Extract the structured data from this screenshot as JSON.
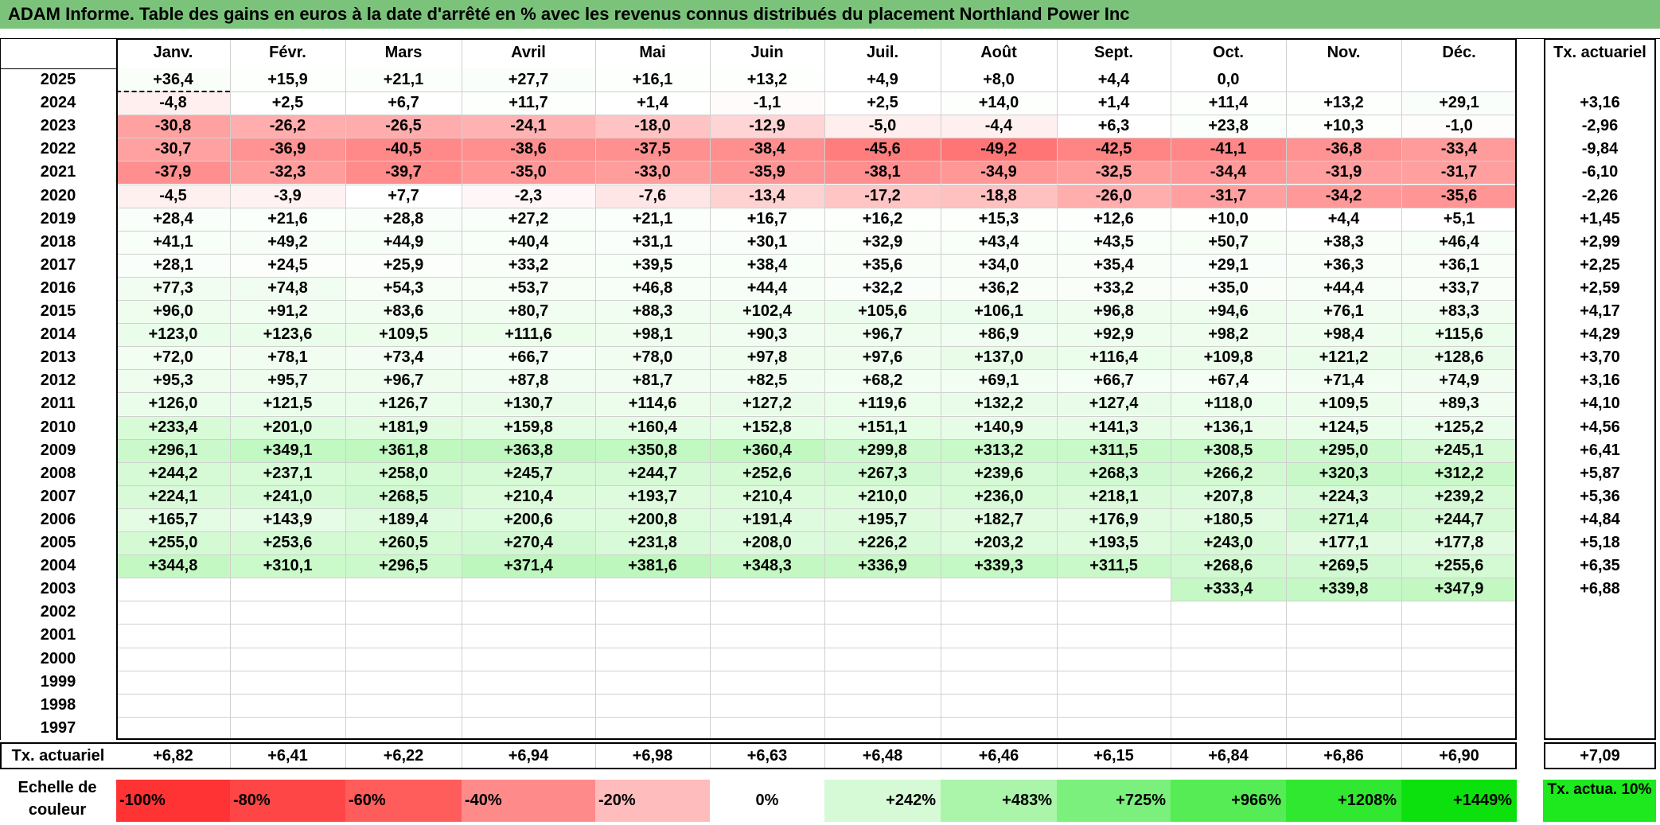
{
  "title": "ADAM Informe. Table des gains en euros à la date d'arrêté en % avec les revenus connus distribués du placement Northland Power Inc",
  "chart_data": {
    "type": "heatmap",
    "title": "ADAM Informe. Table des gains en euros à la date d'arrêté en % avec les revenus connus distribués du placement Northland Power Inc",
    "columns": [
      "Janv.",
      "Févr.",
      "Mars",
      "Avril",
      "Mai",
      "Juin",
      "Juil.",
      "Août",
      "Sept.",
      "Oct.",
      "Nov.",
      "Déc."
    ],
    "annual_header": "Tx. actuariel",
    "rows": [
      {
        "year": "2025",
        "values": [
          "+36,4",
          "+15,9",
          "+21,1",
          "+27,7",
          "+16,1",
          "+13,2",
          "+4,9",
          "+8,0",
          "+4,4",
          "0,0",
          "",
          ""
        ],
        "annual": ""
      },
      {
        "year": "2024",
        "values": [
          "-4,8",
          "+2,5",
          "+6,7",
          "+11,7",
          "+1,4",
          "-1,1",
          "+2,5",
          "+14,0",
          "+1,4",
          "+11,4",
          "+13,2",
          "+29,1"
        ],
        "annual": "+3,16"
      },
      {
        "year": "2023",
        "values": [
          "-30,8",
          "-26,2",
          "-26,5",
          "-24,1",
          "-18,0",
          "-12,9",
          "-5,0",
          "-4,4",
          "+6,3",
          "+23,8",
          "+10,3",
          "-1,0"
        ],
        "annual": "-2,96"
      },
      {
        "year": "2022",
        "values": [
          "-30,7",
          "-36,9",
          "-40,5",
          "-38,6",
          "-37,5",
          "-38,4",
          "-45,6",
          "-49,2",
          "-42,5",
          "-41,1",
          "-36,8",
          "-33,4"
        ],
        "annual": "-9,84"
      },
      {
        "year": "2021",
        "values": [
          "-37,9",
          "-32,3",
          "-39,7",
          "-35,0",
          "-33,0",
          "-35,9",
          "-38,1",
          "-34,9",
          "-32,5",
          "-34,4",
          "-31,9",
          "-31,7"
        ],
        "annual": "-6,10"
      },
      {
        "year": "2020",
        "values": [
          "-4,5",
          "-3,9",
          "+7,7",
          "-2,3",
          "-7,6",
          "-13,4",
          "-17,2",
          "-18,8",
          "-26,0",
          "-31,7",
          "-34,2",
          "-35,6"
        ],
        "annual": "-2,26"
      },
      {
        "year": "2019",
        "values": [
          "+28,4",
          "+21,6",
          "+28,8",
          "+27,2",
          "+21,1",
          "+16,7",
          "+16,2",
          "+15,3",
          "+12,6",
          "+10,0",
          "+4,4",
          "+5,1"
        ],
        "annual": "+1,45"
      },
      {
        "year": "2018",
        "values": [
          "+41,1",
          "+49,2",
          "+44,9",
          "+40,4",
          "+31,1",
          "+30,1",
          "+32,9",
          "+43,4",
          "+43,5",
          "+50,7",
          "+38,3",
          "+46,4"
        ],
        "annual": "+2,99"
      },
      {
        "year": "2017",
        "values": [
          "+28,1",
          "+24,5",
          "+25,9",
          "+33,2",
          "+39,5",
          "+38,4",
          "+35,6",
          "+34,0",
          "+35,4",
          "+29,1",
          "+36,3",
          "+36,1"
        ],
        "annual": "+2,25"
      },
      {
        "year": "2016",
        "values": [
          "+77,3",
          "+74,8",
          "+54,3",
          "+53,7",
          "+46,8",
          "+44,4",
          "+32,2",
          "+36,2",
          "+33,2",
          "+35,0",
          "+44,4",
          "+33,7"
        ],
        "annual": "+2,59"
      },
      {
        "year": "2015",
        "values": [
          "+96,0",
          "+91,2",
          "+83,6",
          "+80,7",
          "+88,3",
          "+102,4",
          "+105,6",
          "+106,1",
          "+96,8",
          "+94,6",
          "+76,1",
          "+83,3"
        ],
        "annual": "+4,17"
      },
      {
        "year": "2014",
        "values": [
          "+123,0",
          "+123,6",
          "+109,5",
          "+111,6",
          "+98,1",
          "+90,3",
          "+96,7",
          "+86,9",
          "+92,9",
          "+98,2",
          "+98,4",
          "+115,6"
        ],
        "annual": "+4,29"
      },
      {
        "year": "2013",
        "values": [
          "+72,0",
          "+78,1",
          "+73,4",
          "+66,7",
          "+78,0",
          "+97,8",
          "+97,6",
          "+137,0",
          "+116,4",
          "+109,8",
          "+121,2",
          "+128,6"
        ],
        "annual": "+3,70"
      },
      {
        "year": "2012",
        "values": [
          "+95,3",
          "+95,7",
          "+96,7",
          "+87,8",
          "+81,7",
          "+82,5",
          "+68,2",
          "+69,1",
          "+66,7",
          "+67,4",
          "+71,4",
          "+74,9"
        ],
        "annual": "+3,16"
      },
      {
        "year": "2011",
        "values": [
          "+126,0",
          "+121,5",
          "+126,7",
          "+130,7",
          "+114,6",
          "+127,2",
          "+119,6",
          "+132,2",
          "+127,4",
          "+118,0",
          "+109,5",
          "+89,3"
        ],
        "annual": "+4,10"
      },
      {
        "year": "2010",
        "values": [
          "+233,4",
          "+201,0",
          "+181,9",
          "+159,8",
          "+160,4",
          "+152,8",
          "+151,1",
          "+140,9",
          "+141,3",
          "+136,1",
          "+124,5",
          "+125,2"
        ],
        "annual": "+4,56"
      },
      {
        "year": "2009",
        "values": [
          "+296,1",
          "+349,1",
          "+361,8",
          "+363,8",
          "+350,8",
          "+360,4",
          "+299,8",
          "+313,2",
          "+311,5",
          "+308,5",
          "+295,0",
          "+245,1"
        ],
        "annual": "+6,41"
      },
      {
        "year": "2008",
        "values": [
          "+244,2",
          "+237,1",
          "+258,0",
          "+245,7",
          "+244,7",
          "+252,6",
          "+267,3",
          "+239,6",
          "+268,3",
          "+266,2",
          "+320,3",
          "+312,2"
        ],
        "annual": "+5,87"
      },
      {
        "year": "2007",
        "values": [
          "+224,1",
          "+241,0",
          "+268,5",
          "+210,4",
          "+193,7",
          "+210,4",
          "+210,0",
          "+236,0",
          "+218,1",
          "+207,8",
          "+224,3",
          "+239,2"
        ],
        "annual": "+5,36"
      },
      {
        "year": "2006",
        "values": [
          "+165,7",
          "+143,9",
          "+189,4",
          "+200,6",
          "+200,8",
          "+191,4",
          "+195,7",
          "+182,7",
          "+176,9",
          "+180,5",
          "+271,4",
          "+244,7"
        ],
        "annual": "+4,84"
      },
      {
        "year": "2005",
        "values": [
          "+255,0",
          "+253,6",
          "+260,5",
          "+270,4",
          "+231,8",
          "+208,0",
          "+226,2",
          "+203,2",
          "+193,5",
          "+243,0",
          "+177,1",
          "+177,8"
        ],
        "annual": "+5,18"
      },
      {
        "year": "2004",
        "values": [
          "+344,8",
          "+310,1",
          "+296,5",
          "+371,4",
          "+381,6",
          "+348,3",
          "+336,9",
          "+339,3",
          "+311,5",
          "+268,6",
          "+269,5",
          "+255,6"
        ],
        "annual": "+6,35"
      },
      {
        "year": "2003",
        "values": [
          "",
          "",
          "",
          "",
          "",
          "",
          "",
          "",
          "",
          "+333,4",
          "+339,8",
          "+347,9"
        ],
        "annual": "+6,88"
      },
      {
        "year": "2002",
        "values": [
          "",
          "",
          "",
          "",
          "",
          "",
          "",
          "",
          "",
          "",
          "",
          ""
        ],
        "annual": ""
      },
      {
        "year": "2001",
        "values": [
          "",
          "",
          "",
          "",
          "",
          "",
          "",
          "",
          "",
          "",
          "",
          ""
        ],
        "annual": ""
      },
      {
        "year": "2000",
        "values": [
          "",
          "",
          "",
          "",
          "",
          "",
          "",
          "",
          "",
          "",
          "",
          ""
        ],
        "annual": ""
      },
      {
        "year": "1999",
        "values": [
          "",
          "",
          "",
          "",
          "",
          "",
          "",
          "",
          "",
          "",
          "",
          ""
        ],
        "annual": ""
      },
      {
        "year": "1998",
        "values": [
          "",
          "",
          "",
          "",
          "",
          "",
          "",
          "",
          "",
          "",
          "",
          ""
        ],
        "annual": ""
      },
      {
        "year": "1997",
        "values": [
          "",
          "",
          "",
          "",
          "",
          "",
          "",
          "",
          "",
          "",
          "",
          ""
        ],
        "annual": ""
      }
    ],
    "footer": {
      "label": "Tx. actuariel",
      "values": [
        "+6,82",
        "+6,41",
        "+6,22",
        "+6,94",
        "+6,98",
        "+6,63",
        "+6,48",
        "+6,46",
        "+6,15",
        "+6,84",
        "+6,86",
        "+6,90"
      ],
      "annual": "+7,09"
    },
    "color_scale": {
      "label": "Echelle de couleur",
      "stops": [
        {
          "label": "-100%",
          "value": -100,
          "color": "#ff3333"
        },
        {
          "label": "-80%",
          "value": -80,
          "color": "#ff4646"
        },
        {
          "label": "-60%",
          "value": -60,
          "color": "#ff5c5c"
        },
        {
          "label": "-40%",
          "value": -40,
          "color": "#ff8a8a"
        },
        {
          "label": "-20%",
          "value": -20,
          "color": "#ffbcbc"
        },
        {
          "label": "0%",
          "value": 0,
          "color": "#ffffff"
        },
        {
          "label": "+242%",
          "value": 242,
          "color": "#d6fad6"
        },
        {
          "label": "+483%",
          "value": 483,
          "color": "#aaf5aa"
        },
        {
          "label": "+725%",
          "value": 725,
          "color": "#7cf07c"
        },
        {
          "label": "+966%",
          "value": 966,
          "color": "#55ec55"
        },
        {
          "label": "+1208%",
          "value": 1208,
          "color": "#30e830"
        },
        {
          "label": "+1449%",
          "value": 1449,
          "color": "#0de10d"
        }
      ],
      "annual_label": "Tx. actua. 10%",
      "annual_color": "#1ee81e"
    }
  }
}
